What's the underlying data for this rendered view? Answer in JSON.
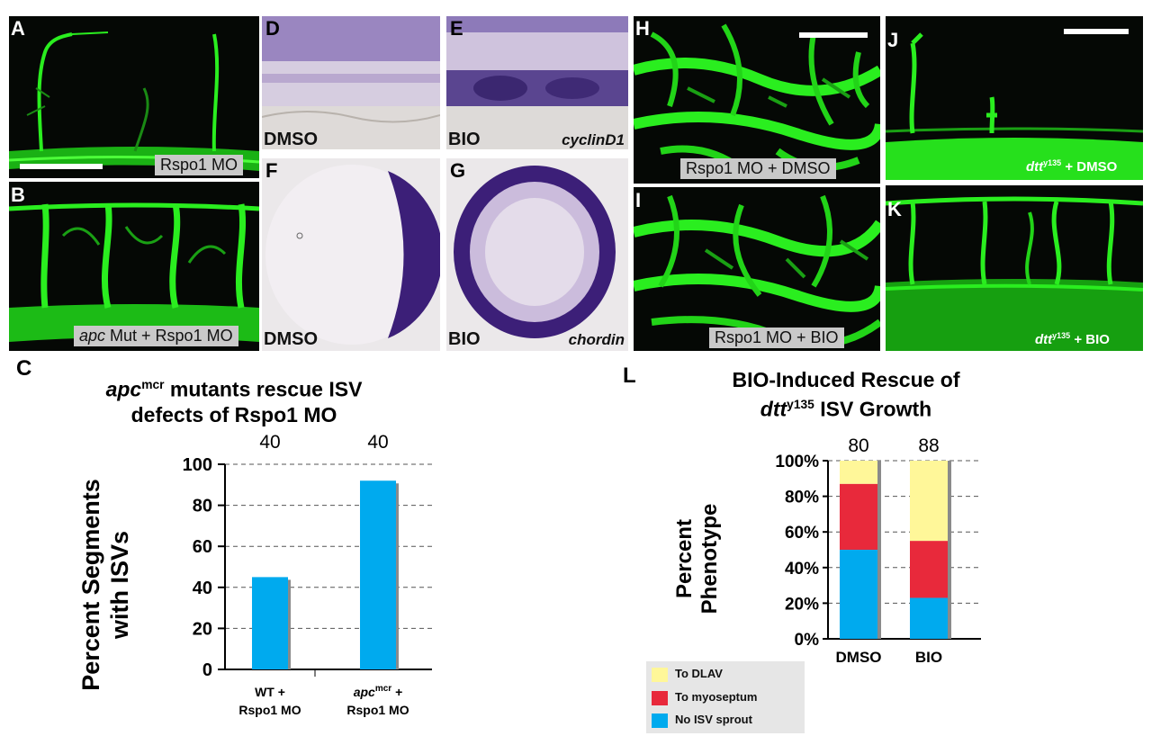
{
  "panels": {
    "A": {
      "label": "A",
      "tag": "Rspo1 MO"
    },
    "B": {
      "label": "B",
      "tag_italic": "apc",
      "tag_rest": " Mut + Rspo1 MO"
    },
    "D": {
      "label": "D",
      "tag": "DMSO"
    },
    "E": {
      "label": "E",
      "tag": "BIO",
      "gene": "cyclinD1"
    },
    "F": {
      "label": "F",
      "tag": "DMSO"
    },
    "G": {
      "label": "G",
      "tag": "BIO",
      "gene": "chordin"
    },
    "H": {
      "label": "H",
      "tag": "Rspo1 MO + DMSO"
    },
    "I": {
      "label": "I",
      "tag": "Rspo1 MO + BIO"
    },
    "J": {
      "label": "J",
      "tag_italic": "dtt",
      "tag_sup": "y135",
      "tag_rest": " + DMSO"
    },
    "K": {
      "label": "K",
      "tag_italic": "dtt",
      "tag_sup": "y135",
      "tag_rest": " + BIO"
    },
    "C": {
      "label": "C"
    },
    "L": {
      "label": "L"
    }
  },
  "colors": {
    "vessel_green": "#22e01a",
    "bar_blue": "#00aaee",
    "bar_shadow": "#8a8a8a",
    "to_dlav": "#fff799",
    "to_myoseptum": "#e8293b",
    "no_isv_sprout": "#00aaee",
    "stain_purple": "#3c1f78"
  },
  "chart_data": [
    {
      "type": "bar",
      "title_italic": "apc",
      "title_sup": "mcr",
      "title_rest": " mutants rescue ISV",
      "title_line2": "defects of Rspo1 MO",
      "ylabel_line1": "Percent Segments",
      "ylabel_line2": "with ISVs",
      "categories": [
        {
          "line1": "WT +",
          "line1_italic": "",
          "line1_sup": "",
          "line2": "Rspo1 MO"
        },
        {
          "line1": " +",
          "line1_italic": "apc",
          "line1_sup": "mcr",
          "line2": "Rspo1 MO"
        }
      ],
      "values": [
        45,
        92
      ],
      "n_labels": [
        "40",
        "40"
      ],
      "yticks": [
        "0",
        "20",
        "40",
        "60",
        "80",
        "100"
      ],
      "ylim": [
        0,
        100
      ],
      "grid": true
    },
    {
      "type": "bar",
      "stacked": true,
      "title": "BIO-Induced Rescue of",
      "title2_italic": "dtt",
      "title2_sup": "y135",
      "title2_rest": " ISV Growth",
      "ylabel_line1": "Percent",
      "ylabel_line2": "Phenotype",
      "categories": [
        "DMSO",
        "BIO"
      ],
      "n_labels": [
        "80",
        "88"
      ],
      "series": [
        {
          "name": "No ISV sprout",
          "values": [
            50,
            23
          ]
        },
        {
          "name": "To myoseptum",
          "values": [
            37,
            32
          ]
        },
        {
          "name": "To DLAV",
          "values": [
            13,
            45
          ]
        }
      ],
      "yticks": [
        "0%",
        "20%",
        "40%",
        "60%",
        "80%",
        "100%"
      ],
      "ylim": [
        0,
        100
      ],
      "grid": true,
      "legend_order": [
        "To DLAV",
        "To myoseptum",
        "No ISV sprout"
      ],
      "legend_position": "bottom-left"
    }
  ]
}
